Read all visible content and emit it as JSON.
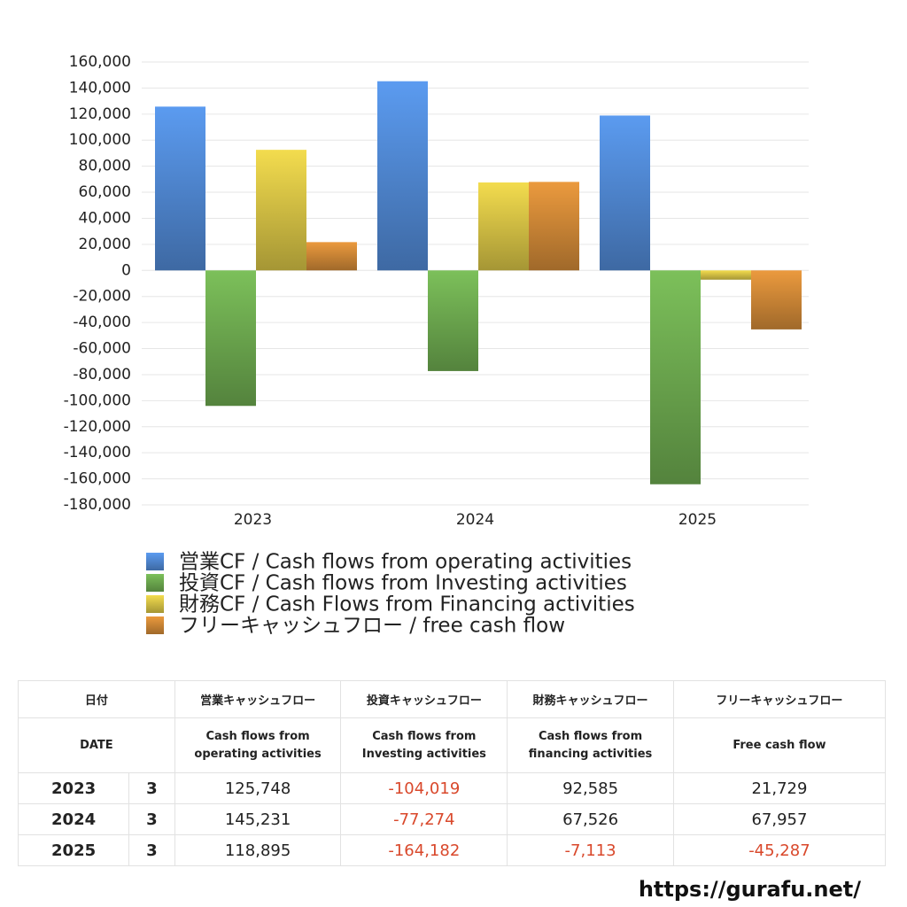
{
  "chart_data": {
    "type": "bar",
    "categories": [
      "2023",
      "2024",
      "2025"
    ],
    "series": [
      {
        "name": "営業CF / Cash flows from operating activities",
        "color": "#5b9bf0",
        "values": [
          125748,
          145231,
          118895
        ]
      },
      {
        "name": "投資CF / Cash flows from Investing activities",
        "color": "#7cc05a",
        "values": [
          -104019,
          -77274,
          -164182
        ]
      },
      {
        "name": "財務CF / Cash Flows from Financing activities",
        "color": "#f3dc4e",
        "values": [
          92585,
          67526,
          -7113
        ]
      },
      {
        "name": "フリーキャッシュフロー / free cash flow",
        "color": "#eb9a3e",
        "values": [
          21729,
          67957,
          -45287
        ]
      }
    ],
    "ylim": [
      -180000,
      160000
    ],
    "yticks": [
      {
        "value": -180000,
        "label": "-180,000"
      },
      {
        "value": -160000,
        "label": "-160,000"
      },
      {
        "value": -140000,
        "label": "-140,000"
      },
      {
        "value": -120000,
        "label": "-120,000"
      },
      {
        "value": -100000,
        "label": "-100,000"
      },
      {
        "value": -80000,
        "label": "-80,000"
      },
      {
        "value": -60000,
        "label": "-60,000"
      },
      {
        "value": -40000,
        "label": "-40,000"
      },
      {
        "value": -20000,
        "label": "-20,000"
      },
      0,
      {
        "value": 20000,
        "label": "20,000"
      },
      {
        "value": 40000,
        "label": "40,000"
      },
      {
        "value": 60000,
        "label": "60,000"
      },
      {
        "value": 80000,
        "label": "80,000"
      },
      {
        "value": 100000,
        "label": "100,000"
      },
      {
        "value": 120000,
        "label": "120,000"
      },
      {
        "value": 140000,
        "label": "140,000"
      },
      {
        "value": 160000,
        "label": "160,000"
      }
    ],
    "grid": true
  },
  "table": {
    "header": [
      "日付",
      "営業キャッシュフロー",
      "投資キャッシュフロー",
      "財務キャッシュフロー",
      "フリーキャッシュフロー"
    ],
    "subheader": [
      "DATE",
      "Cash flows from operating activities",
      "Cash flows from Investing activities",
      "Cash flows from financing activities",
      "Free cash flow"
    ],
    "rows": [
      [
        "2023",
        "3",
        "125,748",
        "-104,019",
        "92,585",
        "21,729"
      ],
      [
        "2024",
        "3",
        "145,231",
        "-77,274",
        "67,526",
        "67,957"
      ],
      [
        "2025",
        "3",
        "118,895",
        "-164,182",
        "-7,113",
        "-45,287"
      ]
    ]
  },
  "footer": "https://gurafu.net/"
}
